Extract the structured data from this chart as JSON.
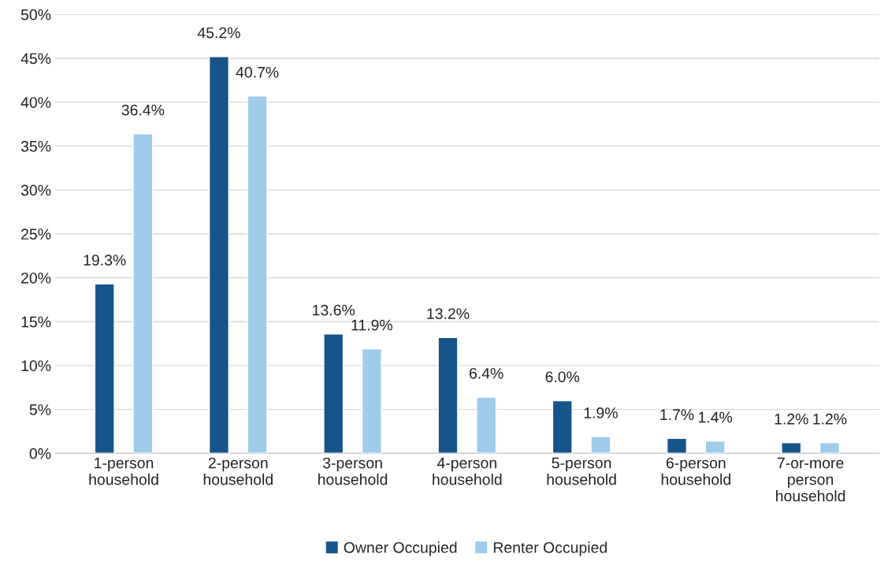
{
  "chart_data": {
    "type": "bar",
    "categories": [
      "1-person\nhousehold",
      "2-person\nhousehold",
      "3-person\nhousehold",
      "4-person\nhousehold",
      "5-person\nhousehold",
      "6-person\nhousehold",
      "7-or-more\nperson\nhousehold"
    ],
    "series": [
      {
        "name": "Owner Occupied",
        "color": "#16548a",
        "values": [
          19.3,
          45.2,
          13.6,
          13.2,
          6.0,
          1.7,
          1.2
        ],
        "value_labels": [
          "19.3%",
          "45.2%",
          "13.6%",
          "13.2%",
          "6.0%",
          "1.7%",
          "1.2%"
        ]
      },
      {
        "name": "Renter Occupied",
        "color": "#9fcbeb",
        "values": [
          36.4,
          40.7,
          11.9,
          6.4,
          1.9,
          1.4,
          1.2
        ],
        "value_labels": [
          "36.4%",
          "40.7%",
          "11.9%",
          "6.4%",
          "1.9%",
          "1.4%",
          "1.2%"
        ]
      }
    ],
    "ylim": [
      0,
      50
    ],
    "yticks": [
      {
        "value": 0,
        "label": "0%"
      },
      {
        "value": 5,
        "label": "5%"
      },
      {
        "value": 10,
        "label": "10%"
      },
      {
        "value": 15,
        "label": "15%"
      },
      {
        "value": 20,
        "label": "20%"
      },
      {
        "value": 25,
        "label": "25%"
      },
      {
        "value": 30,
        "label": "30%"
      },
      {
        "value": 35,
        "label": "35%"
      },
      {
        "value": 40,
        "label": "40%"
      },
      {
        "value": 45,
        "label": "45%"
      },
      {
        "value": 50,
        "label": "50%"
      }
    ],
    "grid": "y",
    "legend": "bottom"
  }
}
